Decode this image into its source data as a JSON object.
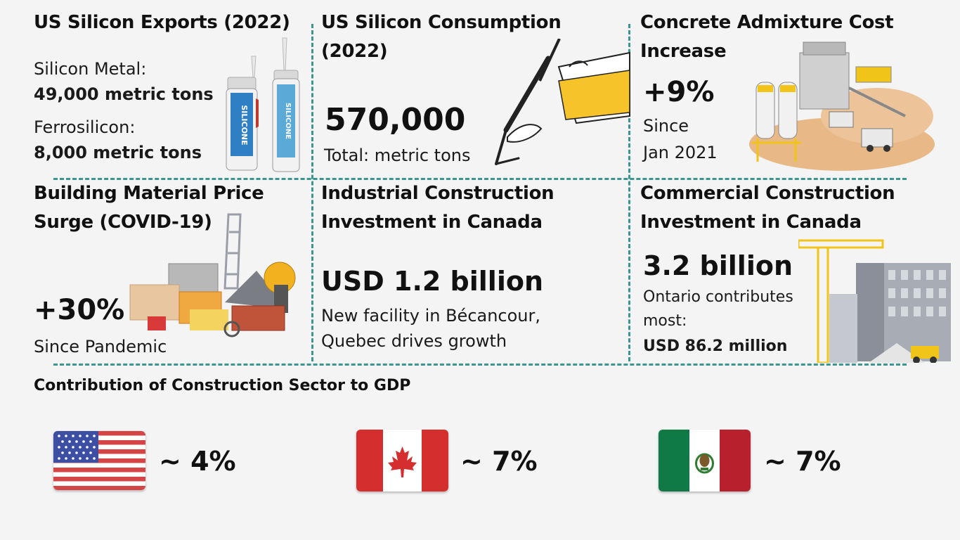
{
  "panels": {
    "silicon_exports": {
      "title": "US Silicon Exports (2022)",
      "metal_label": "Silicon Metal:",
      "metal_value": "49,000 metric tons",
      "ferro_label": "Ferrosilicon:",
      "ferro_value": "8,000 metric tons",
      "tube_text": "SILICONE"
    },
    "silicon_consumption": {
      "title_line1": "US Silicon Consumption",
      "title_line2": "(2022)",
      "value": "570,000",
      "caption": "Total: metric tons"
    },
    "admixture": {
      "title_line1": "Concrete Admixture Cost",
      "title_line2": "Increase",
      "value": "+9%",
      "caption_line1": "Since",
      "caption_line2": "Jan 2021"
    },
    "material_surge": {
      "title_line1": "Building Material Price",
      "title_line2": "Surge (COVID-19)",
      "value": "+30%",
      "caption": "Since Pandemic"
    },
    "industrial": {
      "title_line1": "Industrial Construction",
      "title_line2": "Investment in Canada",
      "value": "USD 1.2 billion",
      "caption_line1": "New facility in Bécancour,",
      "caption_line2": "Quebec drives growth"
    },
    "commercial": {
      "title_line1": "Commercial Construction",
      "title_line2": "Investment in Canada",
      "value": "3.2 billion",
      "caption_line1": "Ontario contributes",
      "caption_line2": "most:",
      "caption_value": "USD 86.2 million"
    }
  },
  "gdp": {
    "title": "Contribution of Construction Sector to GDP",
    "countries": [
      {
        "flag": "us-flag-icon",
        "value": "~ 4%"
      },
      {
        "flag": "canada-flag-icon",
        "value": "~ 7%"
      },
      {
        "flag": "mexico-flag-icon",
        "value": "~ 7%"
      }
    ]
  },
  "colors": {
    "divider": "#3a968e",
    "us_red": "#d64545",
    "us_blue": "#3d4fa3",
    "canada_red": "#d42e2e",
    "mexico_green": "#0f7a45",
    "mexico_red": "#b8202e",
    "caulk_yellow": "#f6c42a"
  }
}
